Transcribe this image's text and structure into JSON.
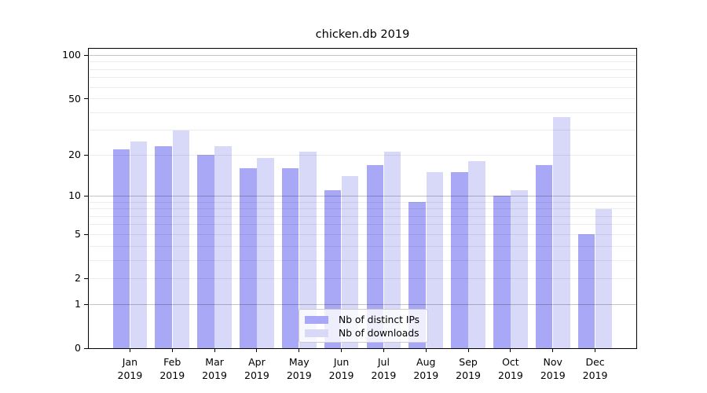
{
  "title": "chicken.db 2019",
  "chart_data": {
    "type": "bar",
    "title": "chicken.db 2019",
    "categories": [
      "Jan 2019",
      "Feb 2019",
      "Mar 2019",
      "Apr 2019",
      "May 2019",
      "Jun 2019",
      "Jul 2019",
      "Aug 2019",
      "Sep 2019",
      "Oct 2019",
      "Nov 2019",
      "Dec 2019"
    ],
    "series": [
      {
        "name": "Nb of distinct IPs",
        "color": "#a8a8f6",
        "values": [
          22,
          23,
          20,
          16,
          16,
          11,
          17,
          9,
          15,
          10,
          17,
          5
        ]
      },
      {
        "name": "Nb of downloads",
        "color": "#d8d8f9",
        "values": [
          25,
          30,
          23,
          19,
          21,
          14,
          21,
          15,
          18,
          11,
          37,
          8
        ]
      }
    ],
    "xlabel": "",
    "ylabel": "",
    "y_scale": "log1p",
    "ylim": [
      0,
      111
    ],
    "y_ticks": [
      100,
      50,
      20,
      10,
      5,
      2,
      1,
      0
    ],
    "y_major_gridlines": [
      1,
      10,
      100
    ],
    "y_minor_gridlines": [
      2,
      3,
      4,
      5,
      6,
      7,
      8,
      9,
      20,
      30,
      40,
      50,
      60,
      70,
      80,
      90
    ],
    "grid": true,
    "legend_position": "lower center",
    "colors": {
      "grid_major": "rgba(0,0,0,0.23)",
      "grid_minor": "rgba(0,0,0,0.075)",
      "axis": "#000000",
      "background": "#ffffff"
    }
  }
}
